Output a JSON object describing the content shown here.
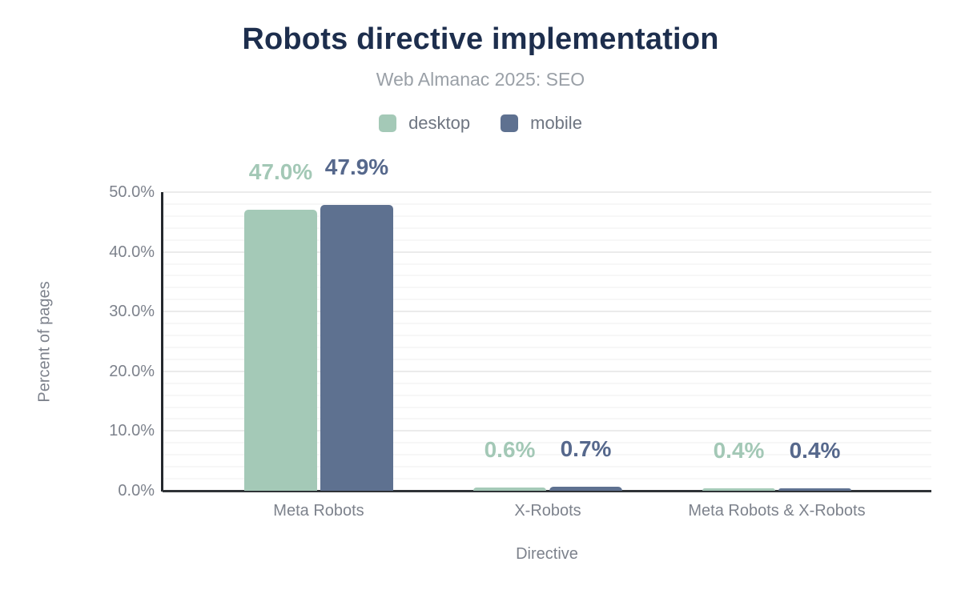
{
  "header": {
    "title": "Robots directive implementation",
    "subtitle": "Web Almanac 2025: SEO"
  },
  "colors": {
    "desktop": "#a4c9b7",
    "mobile": "#5e7190",
    "desktop_label": "#a3c8b6",
    "mobile_label": "#56688c",
    "title_text": "#1d2e4d",
    "axis_text": "#7d828c"
  },
  "chart_data": {
    "type": "bar",
    "title": "Robots directive implementation",
    "subtitle": "Web Almanac 2025: SEO",
    "xlabel": "Directive",
    "ylabel": "Percent of pages",
    "categories": [
      "Meta Robots",
      "X-Robots",
      "Meta Robots & X-Robots"
    ],
    "series": [
      {
        "name": "desktop",
        "color": "#a4c9b7",
        "label_color": "#a3c8b6",
        "values": [
          47.0,
          0.6,
          0.4
        ],
        "value_labels": [
          "47.0%",
          "0.6%",
          "0.4%"
        ]
      },
      {
        "name": "mobile",
        "color": "#5e7190",
        "label_color": "#56688c",
        "values": [
          47.9,
          0.7,
          0.4
        ],
        "value_labels": [
          "47.9%",
          "0.7%",
          "0.4%"
        ]
      }
    ],
    "ylim": [
      0,
      50
    ],
    "ytick_major_step": 10,
    "ytick_minor_step": 2,
    "ytick_labels": [
      "0.0%",
      "10.0%",
      "20.0%",
      "30.0%",
      "40.0%",
      "50.0%"
    ],
    "grid": true,
    "legend_position": "top"
  }
}
